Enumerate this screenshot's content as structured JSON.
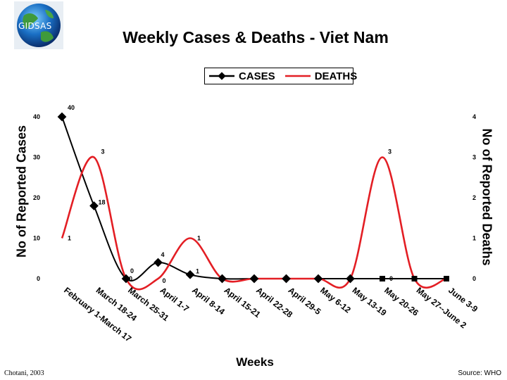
{
  "logo": {
    "text": "GIDSAS"
  },
  "chart_data": {
    "type": "line",
    "title": "Weekly Cases & Deaths - Viet Nam",
    "xlabel": "Weeks",
    "ylabel": "No of Reported Cases",
    "ylabel_right": "No of Reported Deaths",
    "categories": [
      "February 1-March 17",
      "March 18-24",
      "March 25-31",
      "April 1-7",
      "April 8-14",
      "April 15-21",
      "April 22-28",
      "April 29-5",
      "May 6-12",
      "May 13-19",
      "May 20-26",
      "May 27--June 2",
      "June 3-9"
    ],
    "ylim": [
      0,
      40
    ],
    "ylim_right": [
      0,
      4
    ],
    "yticks": [
      "0",
      "10",
      "20",
      "30",
      "40"
    ],
    "yticks_right": [
      "0",
      "1",
      "2",
      "3",
      "4"
    ],
    "series": [
      {
        "name": "CASES",
        "axis": "left",
        "color": "#000000",
        "values": [
          40,
          18,
          0,
          4,
          1,
          0,
          0,
          0,
          0,
          0,
          0,
          0,
          0
        ],
        "labels": [
          "40",
          "18",
          "0",
          "4",
          "1",
          "",
          "",
          "",
          "",
          "",
          "0",
          "",
          ""
        ]
      },
      {
        "name": "DEATHS",
        "axis": "right",
        "color": "#e31e24",
        "values": [
          1,
          3,
          0,
          0,
          1,
          0,
          0,
          0,
          0,
          0,
          3,
          0,
          0
        ],
        "labels": [
          "1",
          "3",
          "0",
          "0",
          "1",
          "",
          "",
          "",
          "",
          "",
          "3",
          "",
          ""
        ]
      }
    ],
    "legend": [
      "CASES",
      "DEATHS"
    ]
  },
  "footer": {
    "credit": "Chotani, 2003",
    "source": "Source: WHO"
  }
}
